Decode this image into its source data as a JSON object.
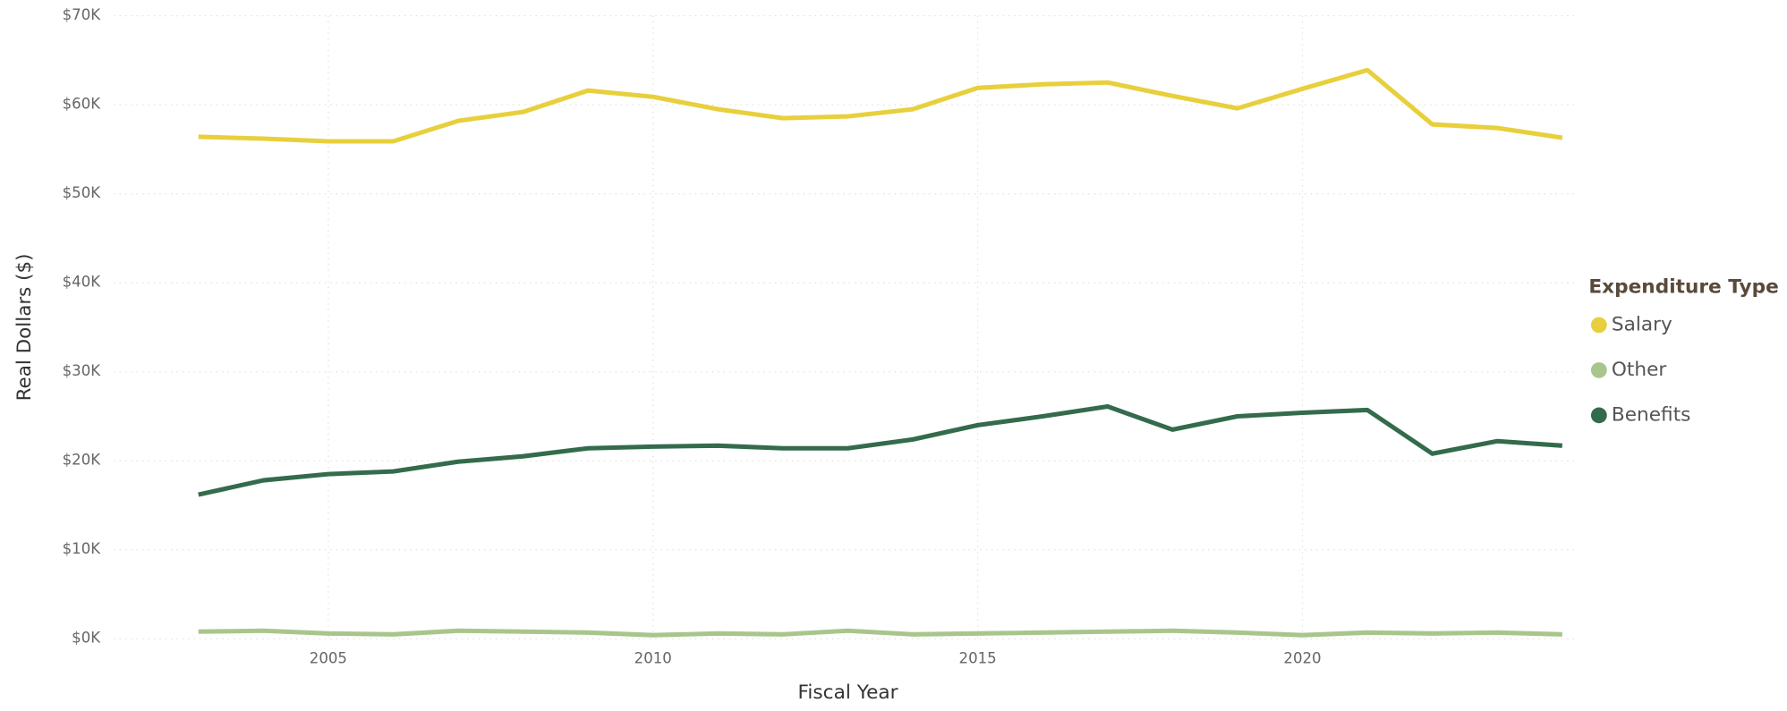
{
  "chart_data": {
    "type": "line",
    "x_label": "Fiscal Year",
    "y_label": "Real Dollars ($)",
    "legend_title": "Expenditure Type",
    "legend_position": "right",
    "grid": true,
    "x": [
      2003,
      2004,
      2005,
      2006,
      2007,
      2008,
      2009,
      2010,
      2011,
      2012,
      2013,
      2014,
      2015,
      2016,
      2017,
      2018,
      2019,
      2020,
      2021,
      2022,
      2023,
      2024
    ],
    "series": [
      {
        "name": "Salary",
        "color": "#e8cf3c",
        "values": [
          56400,
          56200,
          55900,
          55900,
          58200,
          59200,
          61600,
          60900,
          59500,
          58500,
          58700,
          59500,
          61900,
          62300,
          62500,
          61000,
          59600,
          61800,
          63900,
          57800,
          57400,
          56300
        ]
      },
      {
        "name": "Other",
        "color": "#a8c68b",
        "values": [
          800,
          900,
          600,
          500,
          900,
          800,
          700,
          400,
          600,
          500,
          900,
          500,
          600,
          700,
          800,
          900,
          700,
          400,
          700,
          600,
          700,
          500
        ]
      },
      {
        "name": "Benefits",
        "color": "#336b4c",
        "values": [
          16200,
          17800,
          18500,
          18800,
          19900,
          20500,
          21400,
          21600,
          21700,
          21400,
          21400,
          22400,
          24000,
          25000,
          26100,
          23500,
          25000,
          25400,
          25700,
          20800,
          22200,
          21700
        ]
      }
    ],
    "xlim": [
      2001.7,
      2024.25
    ],
    "xticks": [
      2005,
      2010,
      2015,
      2020
    ],
    "ylim": [
      0,
      70000
    ],
    "yticks": [
      {
        "value": 0,
        "label": "$0K"
      },
      {
        "value": 10000,
        "label": "$10K"
      },
      {
        "value": 20000,
        "label": "$20K"
      },
      {
        "value": 30000,
        "label": "$30K"
      },
      {
        "value": 40000,
        "label": "$40K"
      },
      {
        "value": 50000,
        "label": "$50K"
      },
      {
        "value": 60000,
        "label": "$60K"
      },
      {
        "value": 70000,
        "label": "$70K"
      }
    ]
  }
}
